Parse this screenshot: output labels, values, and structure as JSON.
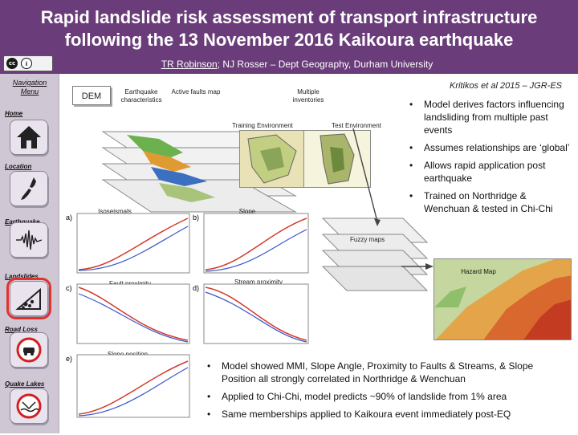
{
  "header": {
    "title_line1": "Rapid landslide risk assessment of transport infrastructure",
    "title_line2": "following the 13 November 2016 Kaikoura earthquake",
    "author_name": "TR Robinson",
    "author_rest": "; NJ Rosser – Dept Geography, Durham University",
    "license_badge": "cc-by-icon"
  },
  "sidebar": {
    "title": "Navigation Menu",
    "items": [
      {
        "label": "Home",
        "icon": "house-icon"
      },
      {
        "label": "Location",
        "icon": "nz-map-icon"
      },
      {
        "label": "Earthquake",
        "icon": "seismogram-icon"
      },
      {
        "label": "Landslides",
        "icon": "landslide-icon"
      },
      {
        "label": "Road Loss",
        "icon": "road-closed-icon"
      },
      {
        "label": "Quake Lakes",
        "icon": "lake-blocked-icon"
      }
    ],
    "active": "Landslides"
  },
  "diagram": {
    "dem": "DEM",
    "eq_characteristics": "Earthquake characteristics",
    "active_faults": "Active faults map",
    "multiple_inventories": "Multiple inventories",
    "training_environment": "Training Environment",
    "test_environment": "Test Environment",
    "isoseismals": "Isoseismals",
    "slope": "Slope",
    "fault_proximity": "Fault proximity",
    "stream_proximity": "Stream proximity",
    "slope_position": "Slope position",
    "fuzzy_maps": "Fuzzy maps",
    "hazard_map": "Hazard Map",
    "reference": "Kritikos et al 2015 – JGR-ES",
    "panel_labels": [
      "a)",
      "b)",
      "c)",
      "d)",
      "e)"
    ]
  },
  "bullets_right": [
    "Model derives factors influencing landsliding from multiple past events",
    "Assumes relationships are ‘global’",
    "Allows rapid application post earthquake",
    "Trained on Northridge & Wenchuan & tested in Chi-Chi"
  ],
  "bullets_bottom": [
    "Model showed MMI, Slope Angle, Proximity to Faults & Streams, & Slope Position all strongly correlated in Northridge & Wenchuan",
    "Applied to Chi-Chi, model predicts ~90% of landslide from 1% area",
    "Same memberships applied to Kaikoura event immediately post-EQ"
  ],
  "colors": {
    "header_bg": "#6a3d7a",
    "sidebar_bg": "#d0c7d5",
    "active_outline": "#e0332e",
    "curve_red": "#d33a2c",
    "curve_blue": "#3a55c9"
  }
}
